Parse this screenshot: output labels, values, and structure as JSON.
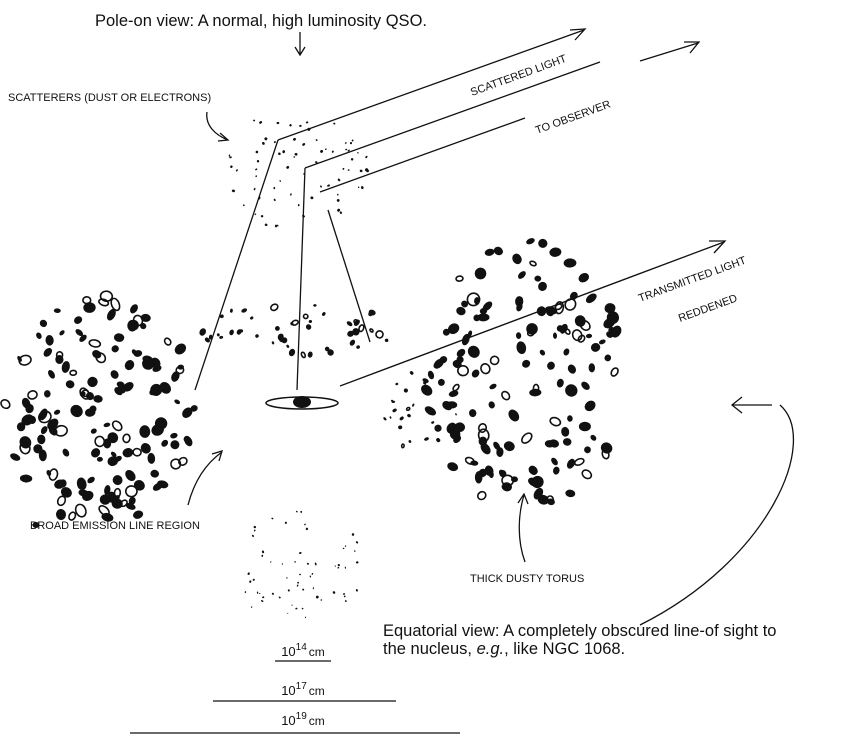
{
  "title": "Pole-on view:  A normal, high luminosity QSO.",
  "labels": {
    "scatterers": "SCATTERERS (DUST OR ELECTRONS)",
    "scattered_light": "SCATTERED LIGHT",
    "to_observer": "TO OBSERVER",
    "transmitted_light": "TRANSMITTED LIGHT",
    "reddened": "REDDENED",
    "blr": "BROAD EMISSION LINE REGION",
    "torus": "THICK DUSTY TORUS"
  },
  "equatorial_view": {
    "line1": "Equatorial view:  A completely obscured line-of sight to",
    "line2_start": "the nucleus, ",
    "line2_italic": "e.g.",
    "line2_end": ", like NGC 1068."
  },
  "scales": [
    {
      "base": "10",
      "exponent": "14",
      "unit": "cm"
    },
    {
      "base": "10",
      "exponent": "17",
      "unit": "cm"
    },
    {
      "base": "10",
      "exponent": "19",
      "unit": "cm"
    }
  ]
}
